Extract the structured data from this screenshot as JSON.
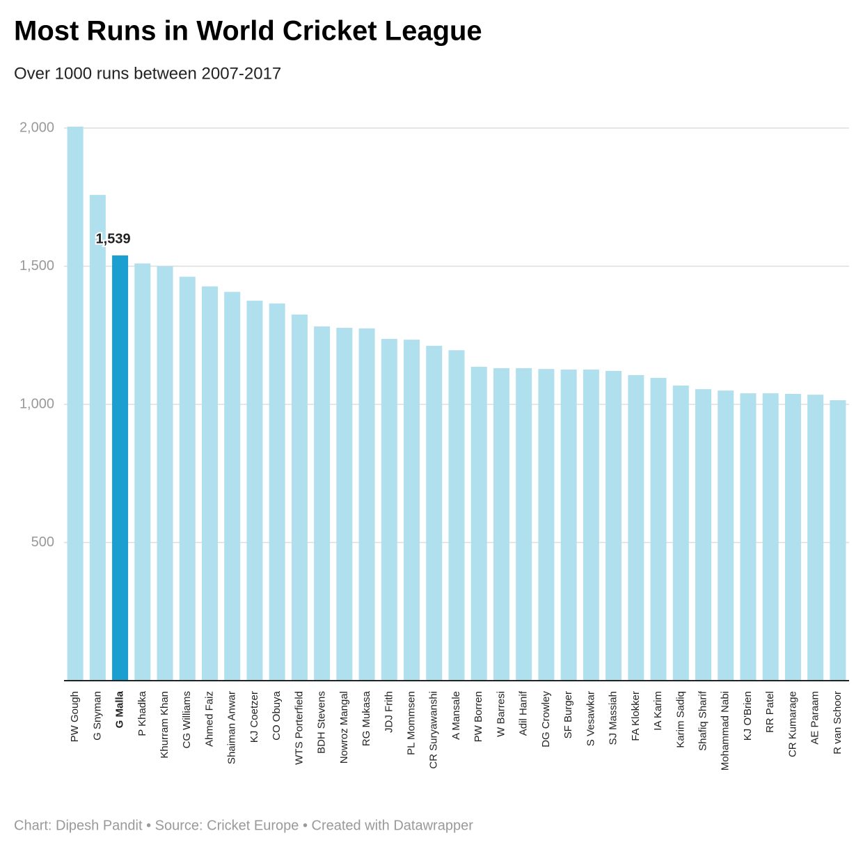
{
  "chart_data": {
    "type": "bar",
    "title": "Most Runs in World Cricket League",
    "subtitle": "Over 1000 runs between 2007-2017",
    "source": "Chart: Dipesh Pandit • Source: Cricket Europe • Created with Datawrapper",
    "categories": [
      "PW Gough",
      "G Snyman",
      "G Malla",
      "P Khadka",
      "Khurram Khan",
      "CG Williams",
      "Ahmed Faiz",
      "Shaiman Anwar",
      "KJ Coetzer",
      "CO Obuya",
      "WTS Porterfield",
      "BDH Stevens",
      "Nowroz Mangal",
      "RG Mukasa",
      "JDJ Frith",
      "PL Mommsen",
      "CR Suryawanshi",
      "A Mansale",
      "PW Borren",
      "W Barresi",
      "Adil Hanif",
      "DG Crowley",
      "SF Burger",
      "S Vesawkar",
      "SJ Massiah",
      "FA Klokker",
      "IA Karim",
      "Karim Sadiq",
      "Shafiq Sharif",
      "Mohammad Nabi",
      "KJ O'Brien",
      "RR Patel",
      "CR Kumarage",
      "AE Paraam",
      "R van Schoor"
    ],
    "values": [
      2005,
      1758,
      1539,
      1510,
      1500,
      1462,
      1427,
      1407,
      1375,
      1365,
      1325,
      1282,
      1277,
      1275,
      1237,
      1234,
      1212,
      1196,
      1136,
      1131,
      1131,
      1128,
      1126,
      1126,
      1121,
      1106,
      1096,
      1068,
      1055,
      1050,
      1040,
      1040,
      1038,
      1035,
      1015
    ],
    "value_labels": [
      null,
      null,
      "1,539",
      null,
      null,
      null,
      null,
      null,
      null,
      null,
      null,
      null,
      null,
      null,
      null,
      null,
      null,
      null,
      null,
      null,
      null,
      null,
      null,
      null,
      null,
      null,
      null,
      null,
      null,
      null,
      null,
      null,
      null,
      null,
      null
    ],
    "colors": [
      "#b0dfee",
      "#b0dfee",
      "#1a9fd0",
      "#b0dfee",
      "#b0dfee",
      "#b0dfee",
      "#b0dfee",
      "#b0dfee",
      "#b0dfee",
      "#b0dfee",
      "#b0dfee",
      "#b0dfee",
      "#b0dfee",
      "#b0dfee",
      "#b0dfee",
      "#b0dfee",
      "#b0dfee",
      "#b0dfee",
      "#b0dfee",
      "#b0dfee",
      "#b0dfee",
      "#b0dfee",
      "#b0dfee",
      "#b0dfee",
      "#b0dfee",
      "#b0dfee",
      "#b0dfee",
      "#b0dfee",
      "#b0dfee",
      "#b0dfee",
      "#b0dfee",
      "#b0dfee",
      "#b0dfee",
      "#b0dfee",
      "#b0dfee"
    ],
    "ylim": [
      0,
      2000
    ],
    "yticks": [
      500,
      {
        "value": 1000,
        "label": "1,000"
      },
      {
        "value": 1500,
        "label": "1,500"
      },
      {
        "value": 2000,
        "label": "2,000"
      }
    ],
    "grid": true
  }
}
